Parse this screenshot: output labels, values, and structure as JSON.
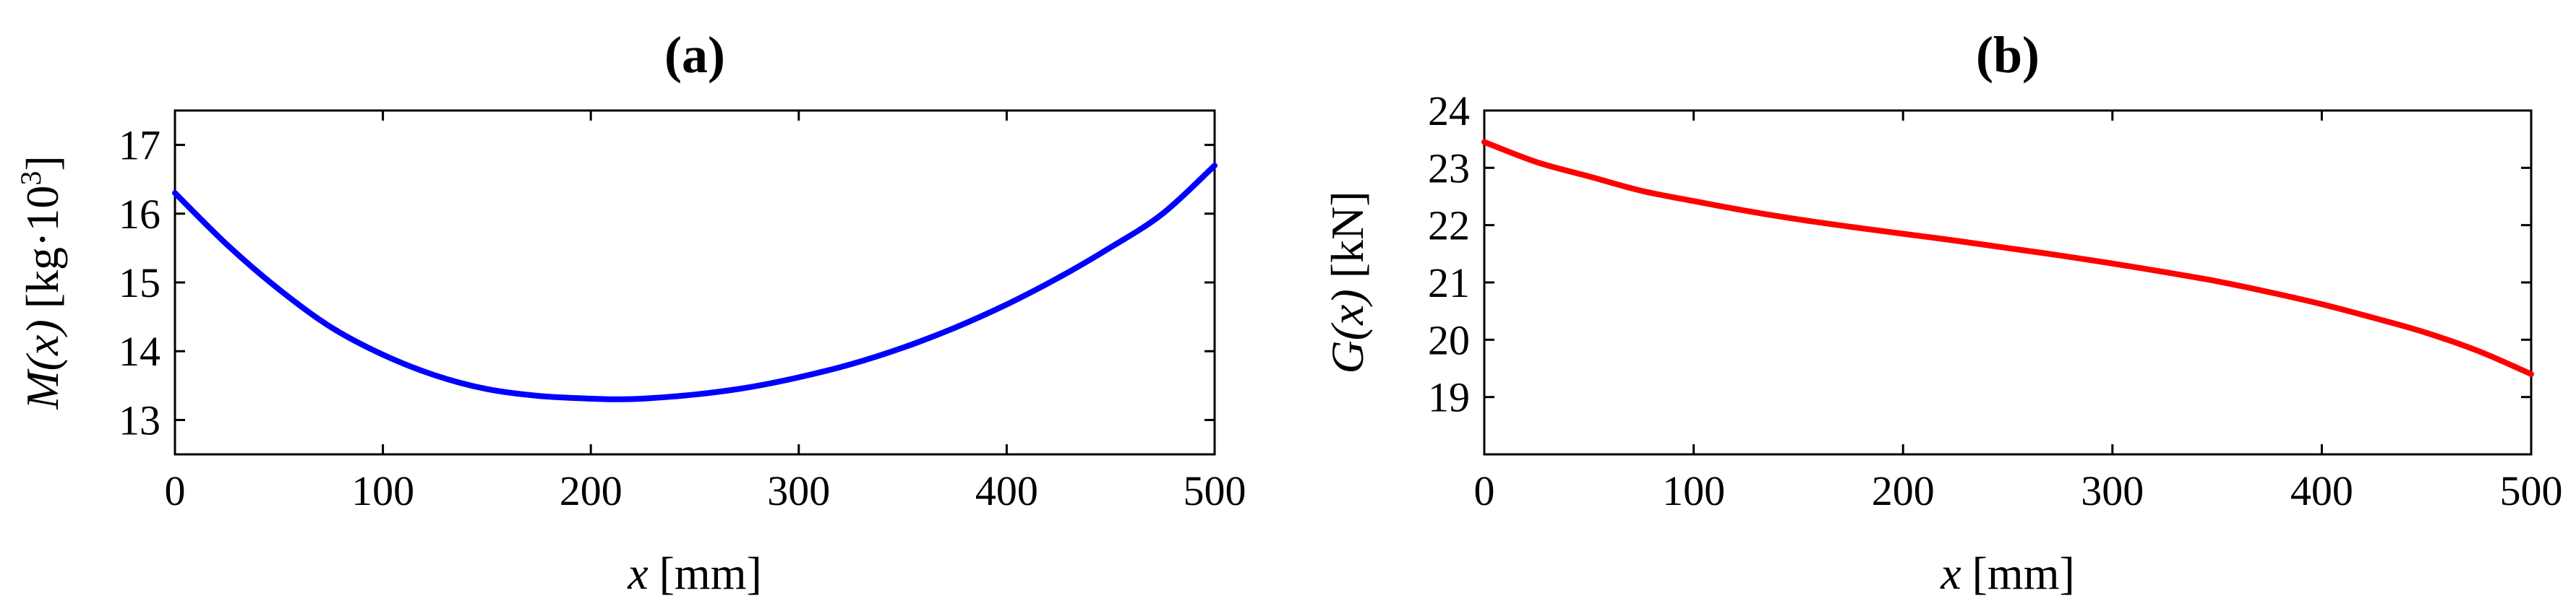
{
  "chart_data": [
    {
      "type": "line",
      "title": "(a)",
      "xlabel_var": "x",
      "xlabel_unit": "[mm]",
      "ylabel_var": "M(x)",
      "ylabel_unit_base": "[kg·10",
      "ylabel_unit_exp": "3",
      "ylabel_unit_close": "]",
      "xlim": [
        0,
        500
      ],
      "ylim": [
        12.5,
        17.5
      ],
      "xticks": [
        0,
        100,
        200,
        300,
        400,
        500
      ],
      "yticks": [
        13,
        14,
        15,
        16,
        17
      ],
      "grid": false,
      "series": [
        {
          "color": "#0000ff",
          "x": [
            0,
            25,
            50,
            75,
            100,
            125,
            150,
            175,
            200,
            212,
            225,
            250,
            275,
            300,
            325,
            350,
            375,
            400,
            425,
            450,
            475,
            500
          ],
          "y": [
            16.3,
            15.55,
            14.9,
            14.35,
            13.95,
            13.65,
            13.45,
            13.35,
            13.31,
            13.3,
            13.31,
            13.37,
            13.47,
            13.62,
            13.81,
            14.05,
            14.34,
            14.68,
            15.07,
            15.51,
            16.0,
            16.7
          ]
        }
      ]
    },
    {
      "type": "line",
      "title": "(b)",
      "xlabel_var": "x",
      "xlabel_unit": "[mm]",
      "ylabel_var": "G(x)",
      "ylabel_unit": "[kN]",
      "xlim": [
        0,
        500
      ],
      "ylim": [
        18,
        24
      ],
      "xticks": [
        0,
        100,
        200,
        300,
        400,
        500
      ],
      "yticks": [
        19,
        20,
        21,
        22,
        23,
        24
      ],
      "grid": false,
      "series": [
        {
          "color": "#ff0000",
          "x": [
            0,
            25,
            50,
            75,
            100,
            125,
            150,
            175,
            200,
            225,
            250,
            275,
            300,
            325,
            350,
            375,
            400,
            425,
            450,
            475,
            500
          ],
          "y": [
            23.45,
            23.1,
            22.85,
            22.6,
            22.42,
            22.25,
            22.1,
            21.97,
            21.85,
            21.73,
            21.6,
            21.47,
            21.33,
            21.18,
            21.02,
            20.83,
            20.62,
            20.38,
            20.12,
            19.8,
            19.4
          ]
        }
      ]
    }
  ]
}
